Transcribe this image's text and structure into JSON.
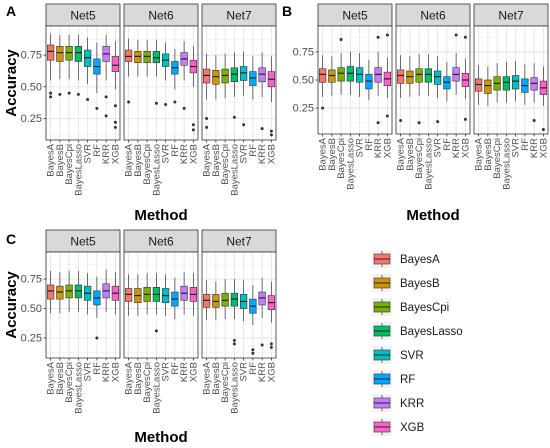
{
  "methods": [
    "BayesA",
    "BayesB",
    "BayesCpi",
    "BayesLasso",
    "SVR",
    "RF",
    "KRR",
    "XGB"
  ],
  "colors": {
    "BayesA": "#F8766D",
    "BayesB": "#CD9600",
    "BayesCpi": "#7CAE00",
    "BayesLasso": "#00BE67",
    "SVR": "#00BFC4",
    "RF": "#00A9FF",
    "KRR": "#C77CFF",
    "XGB": "#FF61CC"
  },
  "legend": {
    "items": [
      "BayesA",
      "BayesB",
      "BayesCpi",
      "BayesLasso",
      "SVR",
      "RF",
      "KRR",
      "XGB"
    ]
  },
  "chart_data": [
    {
      "panel_label": "A",
      "type": "boxplot",
      "ylabel": "Accuracy",
      "xlabel": "Method",
      "yticks": [
        0.25,
        0.5,
        0.75
      ],
      "ylim": [
        0.08,
        0.98
      ],
      "facets": [
        {
          "name": "Net5",
          "boxes": [
            {
              "min": 0.55,
              "q1": 0.71,
              "median": 0.78,
              "q3": 0.83,
              "max": 0.92,
              "outliers": [
                0.45,
                0.42
              ]
            },
            {
              "min": 0.56,
              "q1": 0.7,
              "median": 0.77,
              "q3": 0.82,
              "max": 0.91,
              "outliers": [
                0.44
              ]
            },
            {
              "min": 0.56,
              "q1": 0.71,
              "median": 0.77,
              "q3": 0.82,
              "max": 0.91,
              "outliers": [
                0.45
              ]
            },
            {
              "min": 0.55,
              "q1": 0.7,
              "median": 0.77,
              "q3": 0.82,
              "max": 0.91,
              "outliers": [
                0.44
              ]
            },
            {
              "min": 0.52,
              "q1": 0.66,
              "median": 0.73,
              "q3": 0.79,
              "max": 0.89,
              "outliers": [
                0.4
              ]
            },
            {
              "min": 0.45,
              "q1": 0.6,
              "median": 0.66,
              "q3": 0.72,
              "max": 0.85,
              "outliers": [
                0.33
              ]
            },
            {
              "min": 0.55,
              "q1": 0.7,
              "median": 0.76,
              "q3": 0.82,
              "max": 0.91,
              "outliers": [
                0.42,
                0.27
              ]
            },
            {
              "min": 0.48,
              "q1": 0.62,
              "median": 0.67,
              "q3": 0.74,
              "max": 0.86,
              "outliers": [
                0.35,
                0.22,
                0.18
              ]
            }
          ]
        },
        {
          "name": "Net6",
          "boxes": [
            {
              "min": 0.58,
              "q1": 0.7,
              "median": 0.74,
              "q3": 0.79,
              "max": 0.88,
              "outliers": [
                0.38
              ]
            },
            {
              "min": 0.58,
              "q1": 0.69,
              "median": 0.74,
              "q3": 0.78,
              "max": 0.87,
              "outliers": []
            },
            {
              "min": 0.58,
              "q1": 0.69,
              "median": 0.74,
              "q3": 0.78,
              "max": 0.87,
              "outliers": []
            },
            {
              "min": 0.58,
              "q1": 0.69,
              "median": 0.73,
              "q3": 0.78,
              "max": 0.87,
              "outliers": [
                0.37
              ]
            },
            {
              "min": 0.55,
              "q1": 0.66,
              "median": 0.71,
              "q3": 0.76,
              "max": 0.85,
              "outliers": [
                0.36
              ]
            },
            {
              "min": 0.48,
              "q1": 0.6,
              "median": 0.65,
              "q3": 0.7,
              "max": 0.8,
              "outliers": [
                0.38
              ]
            },
            {
              "min": 0.55,
              "q1": 0.67,
              "median": 0.72,
              "q3": 0.77,
              "max": 0.86,
              "outliers": [
                0.33
              ]
            },
            {
              "min": 0.5,
              "q1": 0.61,
              "median": 0.66,
              "q3": 0.71,
              "max": 0.82,
              "outliers": [
                0.2,
                0.16
              ]
            }
          ]
        },
        {
          "name": "Net7",
          "boxes": [
            {
              "min": 0.4,
              "q1": 0.53,
              "median": 0.59,
              "q3": 0.64,
              "max": 0.76,
              "outliers": [
                0.25,
                0.18
              ]
            },
            {
              "min": 0.4,
              "q1": 0.52,
              "median": 0.58,
              "q3": 0.63,
              "max": 0.75,
              "outliers": []
            },
            {
              "min": 0.41,
              "q1": 0.53,
              "median": 0.59,
              "q3": 0.64,
              "max": 0.76,
              "outliers": []
            },
            {
              "min": 0.42,
              "q1": 0.54,
              "median": 0.6,
              "q3": 0.65,
              "max": 0.77,
              "outliers": [
                0.26
              ]
            },
            {
              "min": 0.43,
              "q1": 0.55,
              "median": 0.61,
              "q3": 0.66,
              "max": 0.78,
              "outliers": [
                0.2
              ]
            },
            {
              "min": 0.4,
              "q1": 0.51,
              "median": 0.57,
              "q3": 0.62,
              "max": 0.74,
              "outliers": []
            },
            {
              "min": 0.42,
              "q1": 0.54,
              "median": 0.6,
              "q3": 0.65,
              "max": 0.77,
              "outliers": [
                0.17
              ]
            },
            {
              "min": 0.38,
              "q1": 0.5,
              "median": 0.56,
              "q3": 0.62,
              "max": 0.74,
              "outliers": [
                0.15,
                0.12
              ]
            }
          ]
        }
      ]
    },
    {
      "panel_label": "B",
      "type": "boxplot",
      "ylabel": "",
      "xlabel": "Method",
      "yticks": [
        0.25,
        0.5,
        0.75
      ],
      "ylim": [
        0.02,
        0.98
      ],
      "facets": [
        {
          "name": "Net5",
          "boxes": [
            {
              "min": 0.35,
              "q1": 0.48,
              "median": 0.55,
              "q3": 0.6,
              "max": 0.72,
              "outliers": [
                0.25
              ]
            },
            {
              "min": 0.36,
              "q1": 0.48,
              "median": 0.54,
              "q3": 0.59,
              "max": 0.71,
              "outliers": []
            },
            {
              "min": 0.37,
              "q1": 0.49,
              "median": 0.56,
              "q3": 0.61,
              "max": 0.74,
              "outliers": [
                0.86
              ]
            },
            {
              "min": 0.37,
              "q1": 0.49,
              "median": 0.56,
              "q3": 0.62,
              "max": 0.75,
              "outliers": []
            },
            {
              "min": 0.35,
              "q1": 0.48,
              "median": 0.55,
              "q3": 0.61,
              "max": 0.74,
              "outliers": []
            },
            {
              "min": 0.32,
              "q1": 0.42,
              "median": 0.49,
              "q3": 0.55,
              "max": 0.68,
              "outliers": []
            },
            {
              "min": 0.36,
              "q1": 0.48,
              "median": 0.55,
              "q3": 0.61,
              "max": 0.75,
              "outliers": [
                0.88,
                0.12
              ]
            },
            {
              "min": 0.34,
              "q1": 0.45,
              "median": 0.51,
              "q3": 0.57,
              "max": 0.7,
              "outliers": [
                0.9,
                0.18
              ]
            }
          ]
        },
        {
          "name": "Net6",
          "boxes": [
            {
              "min": 0.34,
              "q1": 0.47,
              "median": 0.54,
              "q3": 0.59,
              "max": 0.72,
              "outliers": [
                0.14
              ]
            },
            {
              "min": 0.35,
              "q1": 0.47,
              "median": 0.53,
              "q3": 0.58,
              "max": 0.71,
              "outliers": []
            },
            {
              "min": 0.36,
              "q1": 0.48,
              "median": 0.55,
              "q3": 0.6,
              "max": 0.73,
              "outliers": [
                0.12
              ]
            },
            {
              "min": 0.36,
              "q1": 0.48,
              "median": 0.55,
              "q3": 0.6,
              "max": 0.73,
              "outliers": []
            },
            {
              "min": 0.34,
              "q1": 0.46,
              "median": 0.53,
              "q3": 0.58,
              "max": 0.71,
              "outliers": [
                0.13
              ]
            },
            {
              "min": 0.31,
              "q1": 0.42,
              "median": 0.48,
              "q3": 0.53,
              "max": 0.66,
              "outliers": []
            },
            {
              "min": 0.37,
              "q1": 0.49,
              "median": 0.55,
              "q3": 0.61,
              "max": 0.74,
              "outliers": [
                0.9
              ]
            },
            {
              "min": 0.33,
              "q1": 0.44,
              "median": 0.5,
              "q3": 0.56,
              "max": 0.69,
              "outliers": [
                0.88,
                0.15
              ]
            }
          ]
        },
        {
          "name": "Net7",
          "boxes": [
            {
              "min": 0.28,
              "q1": 0.4,
              "median": 0.46,
              "q3": 0.51,
              "max": 0.63,
              "outliers": []
            },
            {
              "min": 0.27,
              "q1": 0.38,
              "median": 0.45,
              "q3": 0.5,
              "max": 0.62,
              "outliers": []
            },
            {
              "min": 0.3,
              "q1": 0.41,
              "median": 0.47,
              "q3": 0.53,
              "max": 0.65,
              "outliers": []
            },
            {
              "min": 0.3,
              "q1": 0.41,
              "median": 0.48,
              "q3": 0.53,
              "max": 0.66,
              "outliers": []
            },
            {
              "min": 0.31,
              "q1": 0.42,
              "median": 0.49,
              "q3": 0.54,
              "max": 0.67,
              "outliers": []
            },
            {
              "min": 0.28,
              "q1": 0.39,
              "median": 0.45,
              "q3": 0.51,
              "max": 0.64,
              "outliers": []
            },
            {
              "min": 0.3,
              "q1": 0.41,
              "median": 0.47,
              "q3": 0.52,
              "max": 0.65,
              "outliers": [
                0.14
              ]
            },
            {
              "min": 0.27,
              "q1": 0.37,
              "median": 0.43,
              "q3": 0.49,
              "max": 0.62,
              "outliers": [
                0.06
              ]
            }
          ]
        }
      ]
    },
    {
      "panel_label": "C",
      "type": "boxplot",
      "ylabel": "Accuracy",
      "xlabel": "Method",
      "yticks": [
        0.25,
        0.5,
        0.75
      ],
      "ylim": [
        0.08,
        0.98
      ],
      "facets": [
        {
          "name": "Net5",
          "boxes": [
            {
              "min": 0.46,
              "q1": 0.58,
              "median": 0.65,
              "q3": 0.7,
              "max": 0.82,
              "outliers": []
            },
            {
              "min": 0.46,
              "q1": 0.58,
              "median": 0.64,
              "q3": 0.69,
              "max": 0.81,
              "outliers": []
            },
            {
              "min": 0.47,
              "q1": 0.59,
              "median": 0.65,
              "q3": 0.7,
              "max": 0.82,
              "outliers": []
            },
            {
              "min": 0.47,
              "q1": 0.59,
              "median": 0.65,
              "q3": 0.7,
              "max": 0.82,
              "outliers": []
            },
            {
              "min": 0.45,
              "q1": 0.57,
              "median": 0.63,
              "q3": 0.69,
              "max": 0.8,
              "outliers": []
            },
            {
              "min": 0.42,
              "q1": 0.53,
              "median": 0.59,
              "q3": 0.65,
              "max": 0.77,
              "outliers": [
                0.25
              ]
            },
            {
              "min": 0.47,
              "q1": 0.59,
              "median": 0.65,
              "q3": 0.71,
              "max": 0.83,
              "outliers": []
            },
            {
              "min": 0.45,
              "q1": 0.57,
              "median": 0.63,
              "q3": 0.69,
              "max": 0.81,
              "outliers": []
            }
          ]
        },
        {
          "name": "Net6",
          "boxes": [
            {
              "min": 0.44,
              "q1": 0.56,
              "median": 0.62,
              "q3": 0.67,
              "max": 0.79,
              "outliers": []
            },
            {
              "min": 0.44,
              "q1": 0.55,
              "median": 0.61,
              "q3": 0.67,
              "max": 0.79,
              "outliers": []
            },
            {
              "min": 0.45,
              "q1": 0.56,
              "median": 0.62,
              "q3": 0.68,
              "max": 0.8,
              "outliers": []
            },
            {
              "min": 0.45,
              "q1": 0.56,
              "median": 0.62,
              "q3": 0.68,
              "max": 0.8,
              "outliers": [
                0.31
              ]
            },
            {
              "min": 0.44,
              "q1": 0.55,
              "median": 0.61,
              "q3": 0.67,
              "max": 0.79,
              "outliers": []
            },
            {
              "min": 0.41,
              "q1": 0.52,
              "median": 0.58,
              "q3": 0.64,
              "max": 0.76,
              "outliers": []
            },
            {
              "min": 0.45,
              "q1": 0.57,
              "median": 0.63,
              "q3": 0.69,
              "max": 0.81,
              "outliers": []
            },
            {
              "min": 0.44,
              "q1": 0.56,
              "median": 0.62,
              "q3": 0.68,
              "max": 0.8,
              "outliers": []
            }
          ]
        },
        {
          "name": "Net7",
          "boxes": [
            {
              "min": 0.4,
              "q1": 0.51,
              "median": 0.57,
              "q3": 0.62,
              "max": 0.74,
              "outliers": []
            },
            {
              "min": 0.4,
              "q1": 0.51,
              "median": 0.56,
              "q3": 0.62,
              "max": 0.73,
              "outliers": []
            },
            {
              "min": 0.41,
              "q1": 0.52,
              "median": 0.57,
              "q3": 0.63,
              "max": 0.75,
              "outliers": []
            },
            {
              "min": 0.41,
              "q1": 0.52,
              "median": 0.58,
              "q3": 0.63,
              "max": 0.75,
              "outliers": [
                0.23,
                0.2
              ]
            },
            {
              "min": 0.39,
              "q1": 0.5,
              "median": 0.56,
              "q3": 0.62,
              "max": 0.74,
              "outliers": []
            },
            {
              "min": 0.36,
              "q1": 0.46,
              "median": 0.52,
              "q3": 0.58,
              "max": 0.7,
              "outliers": [
                0.15,
                0.12
              ]
            },
            {
              "min": 0.42,
              "q1": 0.53,
              "median": 0.59,
              "q3": 0.64,
              "max": 0.76,
              "outliers": [
                0.19
              ]
            },
            {
              "min": 0.38,
              "q1": 0.49,
              "median": 0.55,
              "q3": 0.61,
              "max": 0.73,
              "outliers": [
                0.2,
                0.17
              ]
            }
          ]
        }
      ]
    }
  ]
}
